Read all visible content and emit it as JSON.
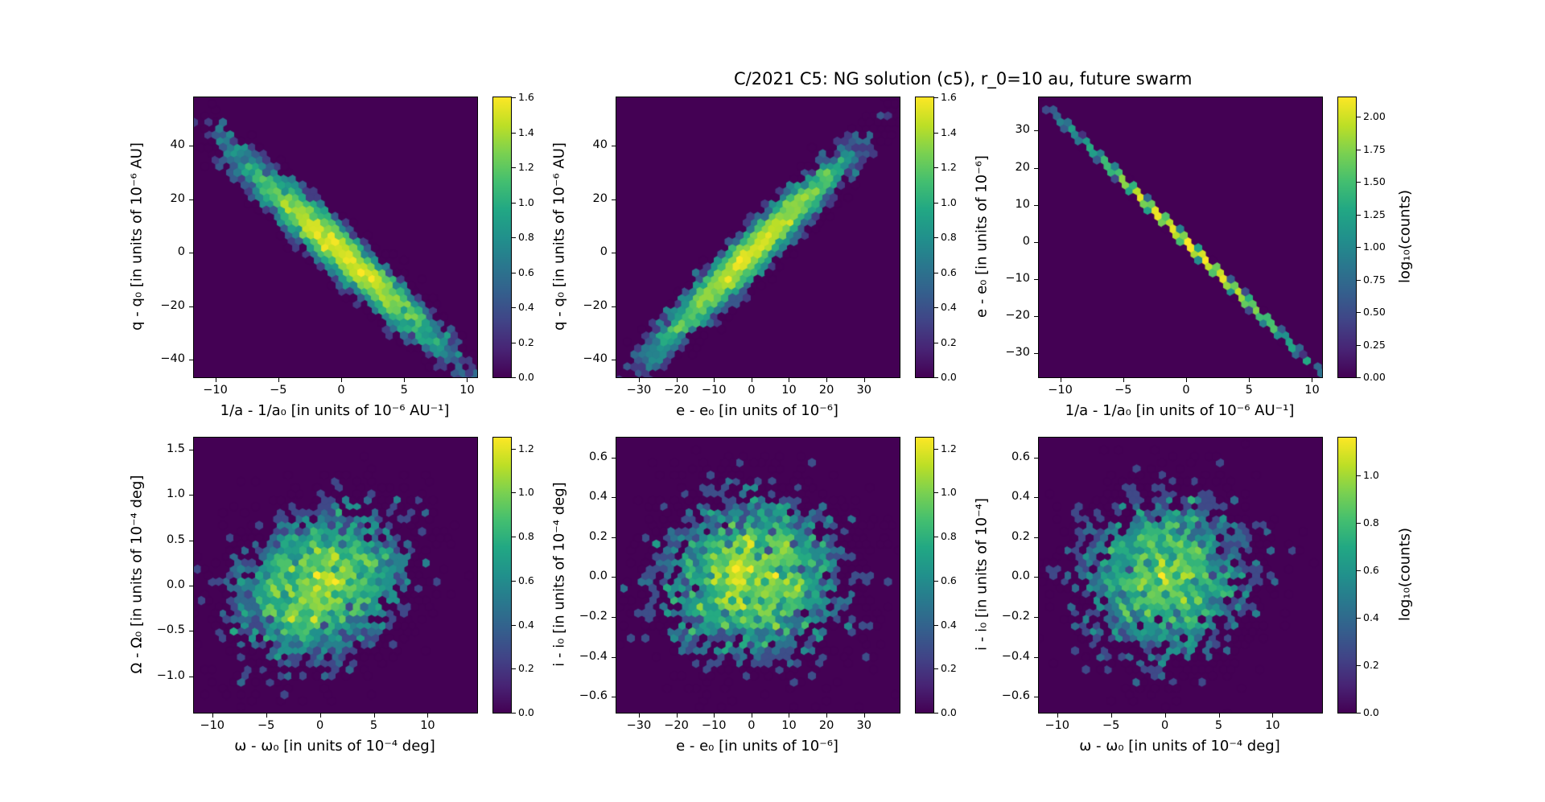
{
  "title": "C/2021 C5: NG solution (c5), r_0=10 au, future swarm",
  "colors": {
    "background": "#ffffff",
    "text": "#000000",
    "panel_background": "#440154",
    "viridis": [
      "#440154",
      "#482475",
      "#414487",
      "#355f8d",
      "#2a788e",
      "#21918c",
      "#22a884",
      "#44bf70",
      "#7ad151",
      "#bddf26",
      "#fde725"
    ]
  },
  "chart_data": [
    {
      "id": "q-vs-inv-a",
      "type": "hexbin",
      "colormap": "viridis",
      "xlabel": "1/a - 1/a₀ [in units of 10⁻⁶ AU⁻¹]",
      "ylabel": "q - q₀ [in units of 10⁻⁶ AU]",
      "xlim": [
        -11.7,
        10.8
      ],
      "ylim": [
        -46.5,
        58
      ],
      "xticks": [
        [
          -10,
          "−10"
        ],
        [
          -5,
          "−5"
        ],
        [
          0,
          "0"
        ],
        [
          5,
          "5"
        ],
        [
          10,
          "10"
        ]
      ],
      "yticks": [
        [
          -40,
          "−40"
        ],
        [
          -20,
          "−20"
        ],
        [
          0,
          "0"
        ],
        [
          20,
          "20"
        ],
        [
          40,
          "40"
        ]
      ],
      "distribution": {
        "kind": "gaussian",
        "n": 4200,
        "center": [
          0,
          0
        ],
        "sigma_x": 4.2,
        "sigma_y": 18.5,
        "rho": -0.965
      },
      "colorbar": {
        "vmax_top": 1.6,
        "label": "",
        "ticks": [
          [
            0,
            "0.0"
          ],
          [
            0.2,
            "0.2"
          ],
          [
            0.4,
            "0.4"
          ],
          [
            0.6,
            "0.6"
          ],
          [
            0.8,
            "0.8"
          ],
          [
            1.0,
            "1.0"
          ],
          [
            1.2,
            "1.2"
          ],
          [
            1.4,
            "1.4"
          ],
          [
            1.6,
            "1.6"
          ]
        ]
      }
    },
    {
      "id": "q-vs-e",
      "type": "hexbin",
      "colormap": "viridis",
      "xlabel": "e - e₀ [in units of 10⁻⁶]",
      "ylabel": "q - q₀ [in units of 10⁻⁶ AU]",
      "xlim": [
        -36,
        39.5
      ],
      "ylim": [
        -46.5,
        58
      ],
      "xticks": [
        [
          -30,
          "−30"
        ],
        [
          -20,
          "−20"
        ],
        [
          -10,
          "−10"
        ],
        [
          0,
          "0"
        ],
        [
          10,
          "10"
        ],
        [
          20,
          "20"
        ],
        [
          30,
          "30"
        ]
      ],
      "yticks": [
        [
          -40,
          "−40"
        ],
        [
          -20,
          "−20"
        ],
        [
          0,
          "0"
        ],
        [
          20,
          "20"
        ],
        [
          40,
          "40"
        ]
      ],
      "distribution": {
        "kind": "gaussian",
        "n": 4200,
        "center": [
          0,
          0
        ],
        "sigma_x": 13,
        "sigma_y": 18.5,
        "rho": 0.965
      },
      "colorbar": {
        "vmax_top": 1.6,
        "label": "",
        "ticks": [
          [
            0,
            "0.0"
          ],
          [
            0.2,
            "0.2"
          ],
          [
            0.4,
            "0.4"
          ],
          [
            0.6,
            "0.6"
          ],
          [
            0.8,
            "0.8"
          ],
          [
            1.0,
            "1.0"
          ],
          [
            1.2,
            "1.2"
          ],
          [
            1.4,
            "1.4"
          ],
          [
            1.6,
            "1.6"
          ]
        ]
      }
    },
    {
      "id": "e-vs-inv-a",
      "type": "hexbin",
      "colormap": "viridis",
      "xlabel": "1/a - 1/a₀ [in units of 10⁻⁶ AU⁻¹]",
      "ylabel": "e - e₀ [in units of 10⁻⁶]",
      "xlim": [
        -11.7,
        10.8
      ],
      "ylim": [
        -36.5,
        39
      ],
      "xticks": [
        [
          -10,
          "−10"
        ],
        [
          -5,
          "−5"
        ],
        [
          0,
          "0"
        ],
        [
          5,
          "5"
        ],
        [
          10,
          "10"
        ]
      ],
      "yticks": [
        [
          -30,
          "−30"
        ],
        [
          -20,
          "−20"
        ],
        [
          -10,
          "−10"
        ],
        [
          0,
          "0"
        ],
        [
          10,
          "10"
        ],
        [
          20,
          "20"
        ],
        [
          30,
          "30"
        ]
      ],
      "distribution": {
        "kind": "line",
        "n": 2800,
        "center": [
          0,
          0
        ],
        "sigma_x": 4.2,
        "slope": -3.32,
        "noise_y": 0.25
      },
      "colorbar": {
        "vmax_top": 2.15,
        "label": "log₁₀(counts)",
        "ticks": [
          [
            0,
            "0.00"
          ],
          [
            0.25,
            "0.25"
          ],
          [
            0.5,
            "0.50"
          ],
          [
            0.75,
            "0.75"
          ],
          [
            1.0,
            "1.00"
          ],
          [
            1.25,
            "1.25"
          ],
          [
            1.5,
            "1.50"
          ],
          [
            1.75,
            "1.75"
          ],
          [
            2.0,
            "2.00"
          ]
        ]
      }
    },
    {
      "id": "Omega-vs-omega",
      "type": "hexbin",
      "colormap": "viridis",
      "xlabel": "ω - ω₀ [in units of 10⁻⁴ deg]",
      "ylabel": "Ω - Ω₀ [in units of 10⁻⁴ deg]",
      "xlim": [
        -11.7,
        14.6
      ],
      "ylim": [
        -1.4,
        1.63
      ],
      "xticks": [
        [
          -10,
          "−10"
        ],
        [
          -5,
          "−5"
        ],
        [
          0,
          "0"
        ],
        [
          5,
          "5"
        ],
        [
          10,
          "10"
        ]
      ],
      "yticks": [
        [
          -1.0,
          "−1.0"
        ],
        [
          -0.5,
          "−0.5"
        ],
        [
          0.0,
          "0.0"
        ],
        [
          0.5,
          "0.5"
        ],
        [
          1.0,
          "1.0"
        ],
        [
          1.5,
          "1.5"
        ]
      ],
      "distribution": {
        "kind": "gaussian",
        "n": 3400,
        "center": [
          0,
          0
        ],
        "sigma_x": 4.0,
        "sigma_y": 0.42,
        "rho": 0.25
      },
      "colorbar": {
        "vmax_top": 1.25,
        "label": "",
        "ticks": [
          [
            0,
            "0.0"
          ],
          [
            0.2,
            "0.2"
          ],
          [
            0.4,
            "0.4"
          ],
          [
            0.6,
            "0.6"
          ],
          [
            0.8,
            "0.8"
          ],
          [
            1.0,
            "1.0"
          ],
          [
            1.2,
            "1.2"
          ]
        ]
      }
    },
    {
      "id": "i-vs-e",
      "type": "hexbin",
      "colormap": "viridis",
      "xlabel": "e - e₀ [in units of 10⁻⁶]",
      "ylabel": "i - i₀ [in units of 10⁻⁴ deg]",
      "xlim": [
        -36,
        39.5
      ],
      "ylim": [
        -0.68,
        0.7
      ],
      "xticks": [
        [
          -30,
          "−30"
        ],
        [
          -20,
          "−20"
        ],
        [
          -10,
          "−10"
        ],
        [
          0,
          "0"
        ],
        [
          10,
          "10"
        ],
        [
          20,
          "20"
        ],
        [
          30,
          "30"
        ]
      ],
      "yticks": [
        [
          -0.6,
          "−0.6"
        ],
        [
          -0.4,
          "−0.4"
        ],
        [
          -0.2,
          "−0.2"
        ],
        [
          0.0,
          "0.0"
        ],
        [
          0.2,
          "0.2"
        ],
        [
          0.4,
          "0.4"
        ],
        [
          0.6,
          "0.6"
        ]
      ],
      "distribution": {
        "kind": "gaussian",
        "n": 3400,
        "center": [
          0,
          0
        ],
        "sigma_x": 12.5,
        "sigma_y": 0.21,
        "rho": 0.0
      },
      "colorbar": {
        "vmax_top": 1.25,
        "label": "",
        "ticks": [
          [
            0,
            "0.0"
          ],
          [
            0.2,
            "0.2"
          ],
          [
            0.4,
            "0.4"
          ],
          [
            0.6,
            "0.6"
          ],
          [
            0.8,
            "0.8"
          ],
          [
            1.0,
            "1.0"
          ],
          [
            1.2,
            "1.2"
          ]
        ]
      }
    },
    {
      "id": "i-vs-omega",
      "type": "hexbin",
      "colormap": "viridis",
      "xlabel": "ω - ω₀ [in units of 10⁻⁴ deg]",
      "ylabel": "i - i₀ [in units of 10⁻⁴]",
      "xlim": [
        -11.7,
        14.6
      ],
      "ylim": [
        -0.68,
        0.7
      ],
      "xticks": [
        [
          -10,
          "−10"
        ],
        [
          -5,
          "−5"
        ],
        [
          0,
          "0"
        ],
        [
          5,
          "5"
        ],
        [
          10,
          "10"
        ]
      ],
      "yticks": [
        [
          -0.6,
          "−0.6"
        ],
        [
          -0.4,
          "−0.4"
        ],
        [
          -0.2,
          "−0.2"
        ],
        [
          0.0,
          "0.0"
        ],
        [
          0.2,
          "0.2"
        ],
        [
          0.4,
          "0.4"
        ],
        [
          0.6,
          "0.6"
        ]
      ],
      "distribution": {
        "kind": "gaussian",
        "n": 3000,
        "center": [
          0,
          0
        ],
        "sigma_x": 4.0,
        "sigma_y": 0.21,
        "rho": 0.0
      },
      "colorbar": {
        "vmax_top": 1.16,
        "label": "log₁₀(counts)",
        "ticks": [
          [
            0,
            "0.0"
          ],
          [
            0.2,
            "0.2"
          ],
          [
            0.4,
            "0.4"
          ],
          [
            0.6,
            "0.6"
          ],
          [
            0.8,
            "0.8"
          ],
          [
            1.0,
            "1.0"
          ]
        ]
      }
    }
  ]
}
